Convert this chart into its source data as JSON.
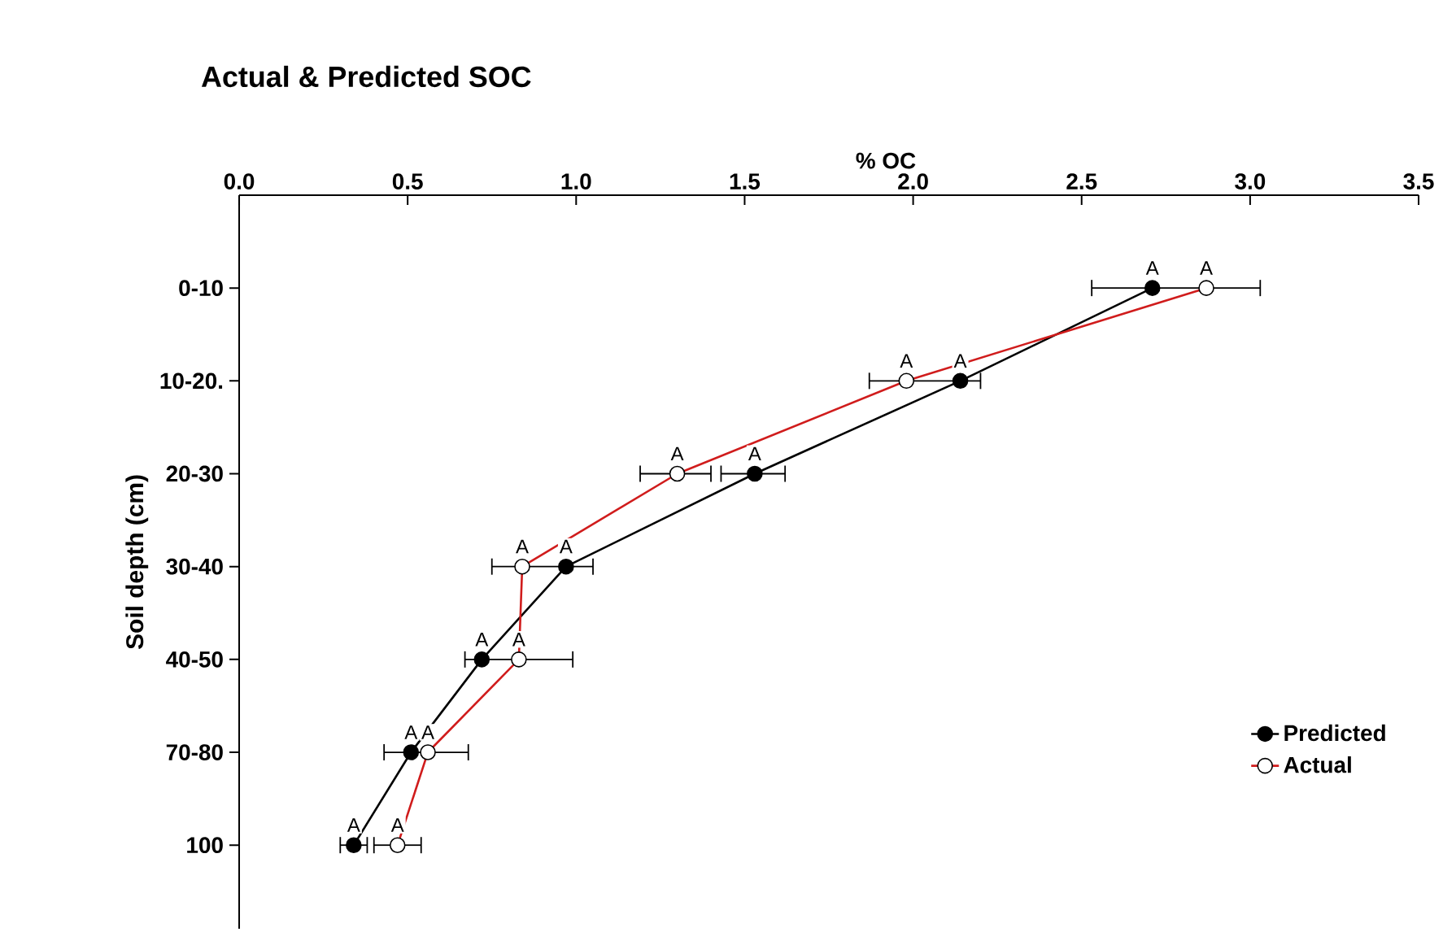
{
  "chart_data": {
    "type": "line",
    "orientation": "horizontal",
    "title": "Actual & Predicted SOC",
    "xlabel": "% OC",
    "ylabel": "Soil depth (cm)",
    "categories": [
      "0-10",
      "10-20.",
      "20-30",
      "30-40",
      "40-50",
      "70-80",
      "100"
    ],
    "xlim": [
      0,
      3.5
    ],
    "xticks": [
      {
        "value": 0,
        "label": "0.0"
      },
      {
        "value": 0.5,
        "label": "0.5"
      },
      {
        "value": 1,
        "label": "1.0"
      },
      {
        "value": 1.5,
        "label": "1.5"
      },
      {
        "value": 2,
        "label": "2.0"
      },
      {
        "value": 2.5,
        "label": "2.5"
      },
      {
        "value": 3,
        "label": "3.0"
      },
      {
        "value": 3.5,
        "label": "3.5"
      }
    ],
    "series": [
      {
        "name": "Predicted",
        "color": "#000000",
        "values": [
          2.71,
          2.14,
          1.53,
          0.97,
          0.72,
          0.51,
          0.34
        ],
        "errors": [
          null,
          null,
          [
            1.43,
            1.62
          ],
          null,
          null,
          null,
          [
            0.3,
            0.38
          ]
        ]
      },
      {
        "name": "Actual",
        "color": "#d01c1c",
        "values": [
          2.87,
          1.98,
          1.3,
          0.84,
          0.83,
          0.56,
          0.47
        ],
        "errors": [
          [
            2.53,
            3.03
          ],
          [
            1.87,
            2.2
          ],
          [
            1.19,
            1.4
          ],
          [
            0.75,
            1.05
          ],
          [
            0.67,
            0.99
          ],
          [
            0.43,
            0.68
          ],
          [
            0.4,
            0.54
          ]
        ]
      }
    ],
    "marker": "circle",
    "line_style": "solid",
    "legend": "bottom right",
    "grid": false,
    "annotations": [
      {
        "text": "A",
        "x": 2.71,
        "y": "0-10"
      },
      {
        "text": "A",
        "x": 2.87,
        "y": "0-10"
      },
      {
        "text": "A",
        "x": 2.14,
        "y": "10-20."
      },
      {
        "text": "A",
        "x": 1.98,
        "y": "10-20."
      },
      {
        "text": "A",
        "x": 1.53,
        "y": "20-30"
      },
      {
        "text": "A",
        "x": 1.3,
        "y": "20-30"
      },
      {
        "text": "A",
        "x": 0.97,
        "y": "30-40"
      },
      {
        "text": "A",
        "x": 0.84,
        "y": "30-40"
      },
      {
        "text": "A",
        "x": 0.72,
        "y": "40-50"
      },
      {
        "text": "A",
        "x": 0.83,
        "y": "40-50"
      },
      {
        "text": "A",
        "x": 0.51,
        "y": "70-80"
      },
      {
        "text": "A",
        "x": 0.56,
        "y": "70-80"
      },
      {
        "text": "A",
        "x": 0.34,
        "y": "100"
      },
      {
        "text": "A",
        "x": 0.47,
        "y": "100"
      }
    ]
  }
}
